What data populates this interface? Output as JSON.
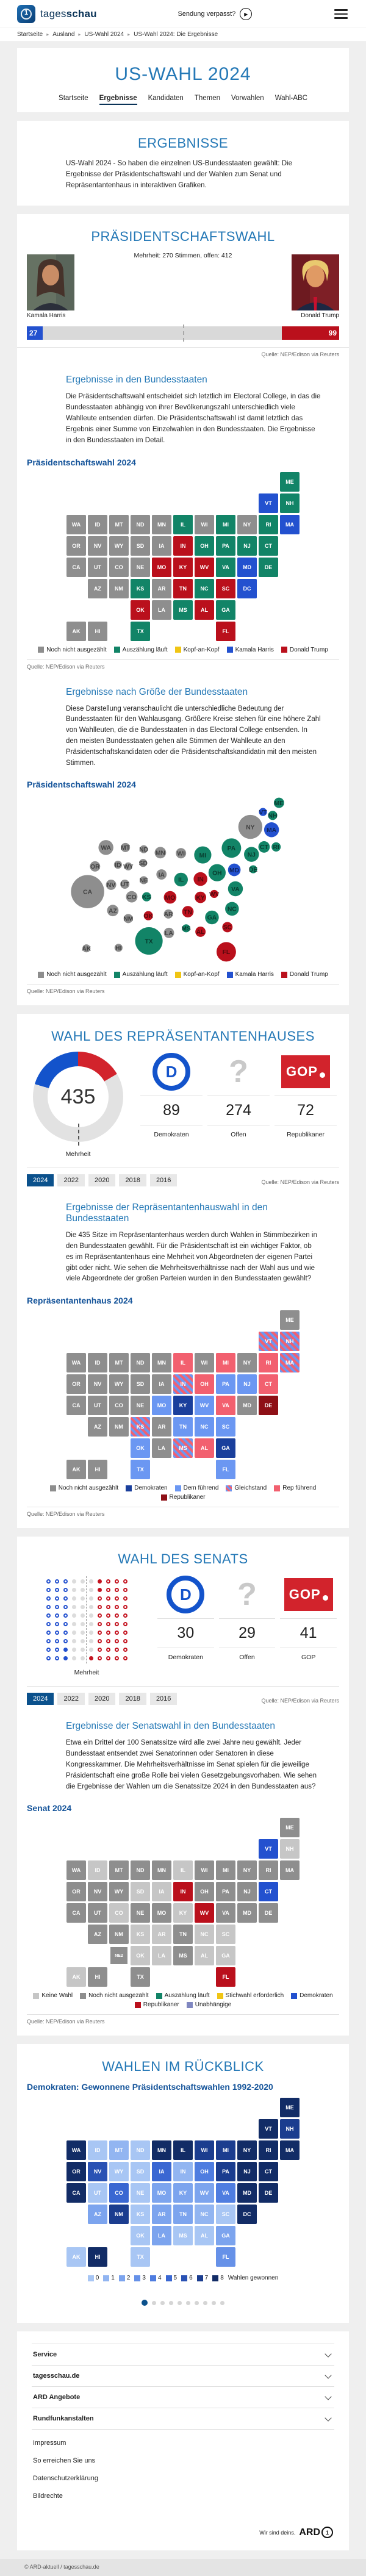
{
  "header": {
    "logo_regular": "tages",
    "logo_bold": "schau",
    "missed_show": "Sendung verpasst?"
  },
  "breadcrumb": {
    "items": [
      "Startseite",
      "Ausland",
      "US-Wahl 2024",
      "US-Wahl 2024: Die Ergebnisse"
    ]
  },
  "hero": {
    "title": "US-WAHL 2024",
    "tabs": [
      {
        "label": "Startseite",
        "active": false
      },
      {
        "label": "Ergebnisse",
        "active": true
      },
      {
        "label": "Kandidaten",
        "active": false
      },
      {
        "label": "Themen",
        "active": false
      },
      {
        "label": "Vorwahlen",
        "active": false
      },
      {
        "label": "Wahl-ABC",
        "active": false
      }
    ]
  },
  "intro": {
    "title": "ERGEBNISSE",
    "text": "US-Wahl 2024 - So haben die einzelnen US-Bundesstaaten gewählt: Die Ergebnisse der Präsidentschaftswahl und der Wahlen zum Senat und Repräsentantenhaus in interaktiven Grafiken."
  },
  "source_label": "Quelle: NEP/Edison via Reuters",
  "president": {
    "title": "PRÄSIDENTSCHAFTSWAHL",
    "majority_note": "Mehrheit: 270 Stimmen, offen: 412",
    "open_votes": 412,
    "harris": {
      "name": "Kamala Harris",
      "votes": 27,
      "color": "#2351cf"
    },
    "trump": {
      "name": "Donald Trump",
      "votes": 99,
      "color": "#ba101c"
    },
    "states_heading": "Ergebnisse in den Bundesstaaten",
    "states_text": "Die Präsidentschaftswahl entscheidet sich letztlich im Electoral College, in das die Bundesstaaten abhängig von ihrer Bevölkerungszahl unterschiedlich viele Wahlleute entsenden dürfen. Die Präsidentschaftswahl ist damit letztlich das Ergebnis einer Summe von Einzelwahlen in den Bundesstaaten. Die Ergebnisse in den Bundesstaaten im Detail.",
    "map_title": "Präsidentschaftswahl 2024",
    "legend": [
      {
        "key": "open",
        "label": "Noch nicht ausgezählt",
        "color": "#8e8e8e"
      },
      {
        "key": "counting",
        "label": "Auszählung läuft",
        "color": "#128467"
      },
      {
        "key": "tossup",
        "label": "Kopf-an-Kopf",
        "color": "#f0c514"
      },
      {
        "key": "harris",
        "label": "Kamala Harris",
        "color": "#2351cf"
      },
      {
        "key": "trump",
        "label": "Donald Trump",
        "color": "#ba101c"
      }
    ],
    "map": {
      "open": [
        "WA",
        "OR",
        "CA",
        "NV",
        "ID",
        "MT",
        "WY",
        "UT",
        "CO",
        "AZ",
        "NM",
        "ND",
        "SD",
        "NE",
        "MN",
        "IA",
        "WI",
        "NY",
        "AR",
        "LA",
        "AK",
        "HI"
      ],
      "counting": [
        "ME",
        "NH",
        "CT",
        "RI",
        "NJ",
        "PA",
        "MI",
        "OH",
        "IL",
        "VA",
        "NC",
        "GA",
        "MS",
        "KS",
        "TX",
        "DE"
      ],
      "harris": [
        "VT",
        "MA",
        "MD",
        "DC"
      ],
      "trump": [
        "IN",
        "MO",
        "WV",
        "KY",
        "TN",
        "OK",
        "SC",
        "AL",
        "FL"
      ]
    },
    "size_heading": "Ergebnisse nach Größe der Bundesstaaten",
    "size_text": "Diese Darstellung veranschaulicht die unterschiedliche Bedeutung der Bundesstaaten für den Wahlausgang. Größere Kreise stehen für eine höhere Zahl von Wahlleuten, die die Bundesstaaten in das Electoral College entsenden. In den meisten Bundesstaaten gehen alle Stimmen der Wahlleute an den Präsidentschaftskandidaten oder die Präsidentschaftskandidatin mit den meisten Stimmen.",
    "map2_title": "Präsidentschaftswahl 2024",
    "bubbles": {
      "ME": [
        440,
        15,
        9
      ],
      "VT": [
        412,
        31,
        7
      ],
      "NH": [
        429,
        37,
        8
      ],
      "NY": [
        390,
        57,
        21
      ],
      "MA": [
        427,
        62,
        13
      ],
      "PA": [
        357,
        94,
        17
      ],
      "NJ": [
        392,
        105,
        13
      ],
      "CT": [
        414,
        92,
        10
      ],
      "RI": [
        435,
        92,
        8
      ],
      "WA": [
        138,
        93,
        13
      ],
      "MT": [
        172,
        93,
        8
      ],
      "ND": [
        204,
        96,
        7
      ],
      "MN": [
        233,
        102,
        10
      ],
      "WI": [
        269,
        103,
        9
      ],
      "MI": [
        307,
        106,
        15
      ],
      "OR": [
        119,
        126,
        9
      ],
      "ID": [
        159,
        123,
        7
      ],
      "WY": [
        177,
        126,
        7
      ],
      "SD": [
        203,
        120,
        7
      ],
      "IA": [
        235,
        140,
        9
      ],
      "NE": [
        204,
        150,
        7
      ],
      "NV": [
        147,
        158,
        9
      ],
      "UT": [
        171,
        157,
        8
      ],
      "CA": [
        106,
        170,
        29
      ],
      "CO": [
        183,
        179,
        10
      ],
      "KS": [
        209,
        179,
        8
      ],
      "MO": [
        250,
        180,
        11
      ],
      "IL": [
        269,
        149,
        12
      ],
      "IN": [
        303,
        148,
        12
      ],
      "OH": [
        332,
        137,
        15
      ],
      "MD": [
        362,
        132,
        11
      ],
      "DE": [
        395,
        131,
        7
      ],
      "VA": [
        364,
        165,
        13
      ],
      "WV": [
        327,
        174,
        7
      ],
      "KY": [
        303,
        180,
        10
      ],
      "NC": [
        358,
        200,
        12
      ],
      "TN": [
        281,
        205,
        10
      ],
      "AZ": [
        150,
        203,
        10
      ],
      "NM": [
        177,
        217,
        8
      ],
      "OK": [
        212,
        212,
        8
      ],
      "AR": [
        247,
        209,
        8
      ],
      "GA": [
        323,
        215,
        12
      ],
      "SC": [
        350,
        232,
        9
      ],
      "MS": [
        278,
        234,
        7
      ],
      "AL": [
        303,
        240,
        9
      ],
      "LA": [
        248,
        242,
        9
      ],
      "TX": [
        213,
        256,
        24
      ],
      "AK": [
        104,
        269,
        7
      ],
      "HI": [
        160,
        268,
        7
      ],
      "FL": [
        348,
        275,
        17
      ]
    }
  },
  "house": {
    "title": "WAHL DES REPRÄSENTANTENHAUSES",
    "donut": {
      "total": "435",
      "dem": 89,
      "open": 274,
      "rep": 72,
      "majority_label": "Mehrheit",
      "dem_color": "#1353cb",
      "rep_color": "#d2232c",
      "open_color": "#e2e2e2"
    },
    "stats": [
      {
        "logo": "dem",
        "value": "89",
        "label": "Demokraten"
      },
      {
        "logo": "question",
        "value": "274",
        "label": "Offen"
      },
      {
        "logo": "gop",
        "value": "72",
        "label": "Republikaner"
      }
    ],
    "gop_text": "GOP",
    "dem_letter": "D",
    "question_mark": "?",
    "years": [
      "2024",
      "2022",
      "2020",
      "2018",
      "2016"
    ],
    "active_year": "2024",
    "states_heading": "Ergebnisse der Repräsentantenhauswahl in den Bundesstaaten",
    "states_text": "Die 435 Sitze im Repräsentantenhaus werden durch Wahlen in Stimmbezirken in den Bundesstaaten gewählt. Für die Präsidentschaft ist ein wichtiger Faktor, ob es im Repräsentantenhaus eine Mehrheit von Abgeordneten der eigenen Partei gibt oder nicht. Wie sehen die Mehrheitsverhältnisse nach der Wahl aus und wie viele Abgeordnete der großen Parteien wurden in den Bundesstaaten gewählt?",
    "map_title": "Repräsentantenhaus 2024",
    "legend": [
      {
        "key": "open",
        "label": "Noch nicht ausgezählt",
        "color": "#8e8e8e"
      },
      {
        "key": "dem",
        "label": "Demokraten",
        "color": "#1a3f9c"
      },
      {
        "key": "dem_lead",
        "label": "Dem führend",
        "color": "#6b97f2"
      },
      {
        "key": "tie",
        "label": "Gleichstand",
        "color": "striped"
      },
      {
        "key": "rep_lead",
        "label": "Rep führend",
        "color": "#f2606f"
      },
      {
        "key": "rep",
        "label": "Republikaner",
        "color": "#8e1016"
      }
    ],
    "map": {
      "open": [
        "WA",
        "OR",
        "CA",
        "NV",
        "ID",
        "MT",
        "WY",
        "UT",
        "CO",
        "AZ",
        "NM",
        "ND",
        "SD",
        "NE",
        "MN",
        "IA",
        "WI",
        "AR",
        "LA",
        "AK",
        "HI",
        "NY",
        "ME",
        "MD"
      ],
      "dem": [
        "KY",
        "GA"
      ],
      "dem_lead": [
        "PA",
        "NJ",
        "MO",
        "OK",
        "TX",
        "TN",
        "WV",
        "NC",
        "SC",
        "FL"
      ],
      "tie": [
        "KS",
        "IN",
        "MS",
        "VT",
        "NH",
        "MA"
      ],
      "rep_lead": [
        "MI",
        "IL",
        "OH",
        "VA",
        "AL",
        "CT",
        "RI"
      ],
      "rep": [
        "DE"
      ]
    }
  },
  "senate": {
    "title": "WAHL DES SENATS",
    "dot_rows": [
      "bbbgggRrrr",
      "bbbgggRrrr",
      "bbbgggrrrr",
      "bbbgggrrrr",
      "bbbgggrrrr",
      "bbbgggrrrr",
      "bbbgggrrrr",
      "bbbgggrrrr",
      "bbBgggrrrr",
      "bbBggRrrrr"
    ],
    "dot_colors": {
      "dem": "#2351cf",
      "rep": "#c41420",
      "open": "#dcdcdc"
    },
    "majority_label": "Mehrheit",
    "stats": [
      {
        "logo": "dem",
        "value": "30",
        "label": "Demokraten"
      },
      {
        "logo": "question",
        "value": "29",
        "label": "Offen"
      },
      {
        "logo": "gop",
        "value": "41",
        "label": "GOP"
      }
    ],
    "years": [
      "2024",
      "2022",
      "2020",
      "2018",
      "2016"
    ],
    "active_year": "2024",
    "states_heading": "Ergebnisse der Senatswahl in den Bundesstaaten",
    "states_text": "Etwa ein Drittel der 100 Senatssitze wird alle zwei Jahre neu gewählt. Jeder Bundesstaat entsendet zwei Senatorinnen oder Senatoren in diese Kongresskammer. Die Mehrheitsverhältnisse im Senat spielen für die jeweilige Präsidentschaft eine große Rolle bei vielen Gesetzgebungsvorhaben. Wie sehen die Ergebnisse der Wahlen um die Senatssitze 2024 in den Bundesstaaten aus?",
    "map_title": "Senat 2024",
    "legend": [
      {
        "key": "no_vote",
        "label": "Keine Wahl",
        "color": "#c6c6c6"
      },
      {
        "key": "open",
        "label": "Noch nicht ausgezählt",
        "color": "#8e8e8e"
      },
      {
        "key": "counting",
        "label": "Auszählung läuft",
        "color": "#128467"
      },
      {
        "key": "runoff",
        "label": "Stichwahl erforderlich",
        "color": "#f0c514"
      },
      {
        "key": "dem",
        "label": "Demokraten",
        "color": "#2351cf"
      },
      {
        "key": "rep",
        "label": "Republikaner",
        "color": "#ba101c"
      },
      {
        "key": "ind",
        "label": "Unabhängige",
        "color": "#8087c0"
      }
    ],
    "map": {
      "no_vote": [
        "AK",
        "AL",
        "AR",
        "CO",
        "GA",
        "ID",
        "IL",
        "IA",
        "KS",
        "KY",
        "LA",
        "NH",
        "NC",
        "OK",
        "SD",
        "SC"
      ],
      "open": [
        "WA",
        "OR",
        "CA",
        "NV",
        "MT",
        "WY",
        "UT",
        "AZ",
        "NM",
        "ND",
        "MN",
        "WI",
        "MI",
        "MO",
        "MS",
        "TN",
        "OH",
        "PA",
        "NY",
        "NJ",
        "VA",
        "MD",
        "DE",
        "MA",
        "ME",
        "RI",
        "HI",
        "NE",
        "TX",
        "NE2"
      ],
      "dem": [
        "VT",
        "CT"
      ],
      "rep": [
        "IN",
        "WV",
        "FL"
      ]
    }
  },
  "review": {
    "title": "WAHLEN IM RÜCKBLICK",
    "subtitle": "Demokraten: Gewonnene Präsidentschaftswahlen 1992-2020",
    "legend_values": [
      "0",
      "1",
      "2",
      "3",
      "4",
      "5",
      "6",
      "7",
      "8"
    ],
    "legend_label": "Wahlen gewonnen",
    "colors": [
      "#a8c6f4",
      "#92b5f1",
      "#7ca4ee",
      "#6691e8",
      "#4f7de0",
      "#3a67d2",
      "#2a52b4",
      "#1b3d8f",
      "#122c66"
    ],
    "map": {
      "WA": 8,
      "OR": 8,
      "CA": 8,
      "HI": 8,
      "MN": 8,
      "IL": 8,
      "NY": 8,
      "ME": 8,
      "VT": 8,
      "MA": 8,
      "RI": 8,
      "CT": 8,
      "NJ": 8,
      "DE": 8,
      "MD": 8,
      "DC": 8,
      "PA": 7,
      "MI": 7,
      "WI": 7,
      "NH": 7,
      "NM": 7,
      "NV": 6,
      "CO": 5,
      "IA": 5,
      "VA": 4,
      "OH": 4,
      "FL": 3,
      "MO": 2,
      "AR": 2,
      "LA": 2,
      "TN": 2,
      "KY": 2,
      "WV": 2,
      "GA": 2,
      "AZ": 2,
      "NC": 1,
      "IN": 1,
      "MT": 1,
      "AK": 0,
      "ID": 0,
      "UT": 0,
      "WY": 0,
      "ND": 0,
      "SD": 0,
      "NE": 0,
      "KS": 0,
      "OK": 0,
      "TX": 0,
      "MS": 0,
      "AL": 0,
      "SC": 0
    },
    "pagination_dots": 10,
    "active_dot": 0
  },
  "footer": {
    "accordions": [
      "Service",
      "tagesschau.de",
      "ARD Angebote",
      "Rundfunkanstalten"
    ],
    "links": [
      "Impressum",
      "So erreichen Sie uns",
      "Datenschutzerklärung",
      "Bildrechte"
    ],
    "ard_tagline": "Wir sind deins.",
    "ard_name": "ARD",
    "ard_one": "1",
    "copyright": "© ARD-aktuell / tagesschau.de"
  }
}
